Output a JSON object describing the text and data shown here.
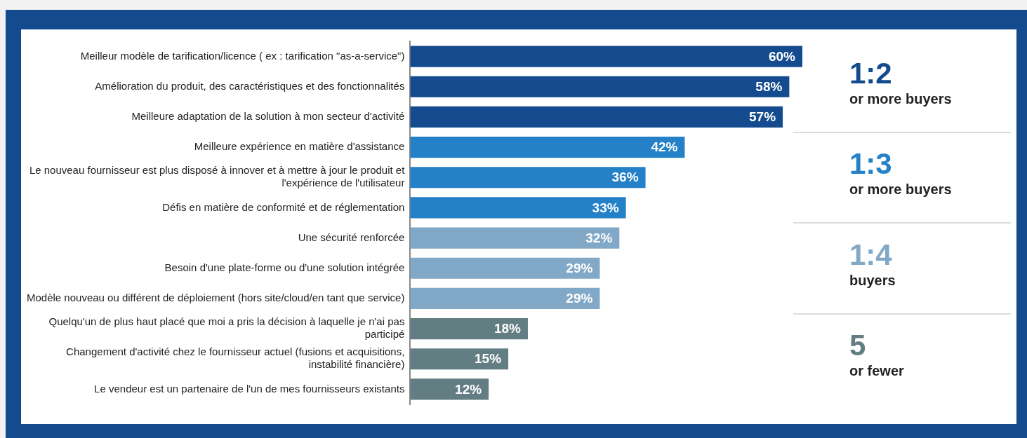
{
  "chart_data": {
    "type": "bar",
    "orientation": "horizontal",
    "categories": [
      "Meilleur modèle de tarification/licence ( ex : tarification \"as-a-service\")",
      "Amélioration du produit, des caractéristiques et des fonctionnalités",
      "Meilleure adaptation de la solution à mon secteur d'activité",
      "Meilleure expérience en matière d'assistance",
      "Le nouveau fournisseur est plus disposé à innover et à mettre à jour le produit et l'expérience de l'utilisateur",
      "Défis en matière de conformité et de réglementation",
      "Une sécurité renforcée",
      "Besoin d'une plate-forme ou d'une solution intégrée",
      "Modèle nouveau ou différent de déploiement (hors site/cloud/en tant que service)",
      "Quelqu'un de plus haut placé que moi a pris la décision à laquelle je n'ai pas participé",
      "Changement d'activité chez le fournisseur actuel (fusions et acquisitions, instabilité financière)",
      "Le vendeur est un partenaire de l'un de mes fournisseurs existants"
    ],
    "values": [
      60,
      58,
      57,
      42,
      36,
      33,
      32,
      29,
      29,
      18,
      15,
      12
    ],
    "colors": [
      "#134b8e",
      "#134b8e",
      "#134b8e",
      "#2481c8",
      "#2481c8",
      "#2481c8",
      "#81a8c6",
      "#81a8c6",
      "#81a8c6",
      "#637e83",
      "#637e83",
      "#637e83"
    ],
    "value_labels": [
      "60%",
      "58%",
      "57%",
      "42%",
      "36%",
      "33%",
      "32%",
      "29%",
      "29%",
      "18%",
      "15%",
      "12%"
    ],
    "tick_labels": "y",
    "legend": false,
    "annotations": [
      "1:2",
      "or more buyers",
      "1:3",
      "or more buyers",
      "1:4",
      "buyers",
      "5",
      "or fewer"
    ]
  }
}
